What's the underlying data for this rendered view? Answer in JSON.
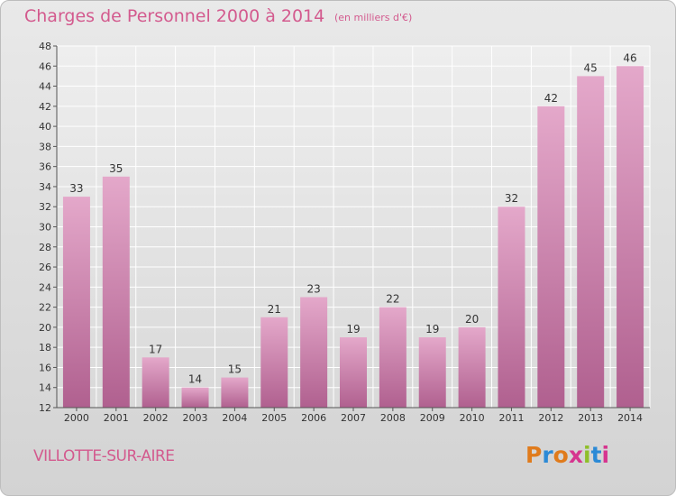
{
  "header": {
    "title": "Charges de Personnel 2000 à 2014",
    "unit": "(en milliers d'€)"
  },
  "footer": {
    "town": "VILLOTTE-SUR-AIRE",
    "logo": "Proxiti"
  },
  "colors": {
    "accent": "#d35a8e",
    "bar_top": "#e4a8ca",
    "bar_bottom": "#b0608f",
    "background": "#e0e0e0",
    "logo_letters": [
      "#e07b1c",
      "#2c8ad6",
      "#e07b1c",
      "#d6358f",
      "#8fbf2a",
      "#2c8ad6",
      "#d6358f"
    ]
  },
  "chart_data": {
    "type": "bar",
    "categories": [
      "2000",
      "2001",
      "2002",
      "2003",
      "2004",
      "2005",
      "2006",
      "2007",
      "2008",
      "2009",
      "2010",
      "2011",
      "2012",
      "2013",
      "2014"
    ],
    "values": [
      33,
      35,
      17,
      14,
      15,
      21,
      23,
      19,
      22,
      19,
      20,
      32,
      42,
      45,
      46
    ],
    "ylim": [
      12,
      48
    ],
    "yticks": [
      12,
      14,
      16,
      18,
      20,
      22,
      24,
      26,
      28,
      30,
      32,
      34,
      36,
      38,
      40,
      42,
      44,
      46,
      48
    ],
    "title": "Charges de Personnel 2000 à 2014",
    "ylabel": "(en milliers d'€)",
    "grid": true,
    "data_labels": true
  }
}
